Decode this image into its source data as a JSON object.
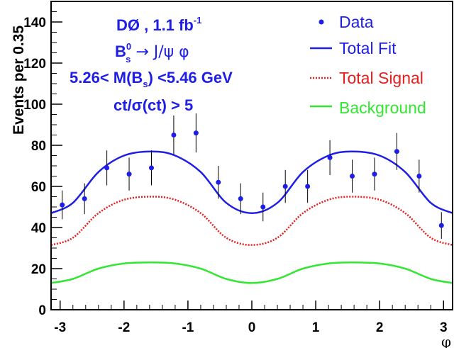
{
  "chart_data": {
    "type": "scatter",
    "xlabel": "φ",
    "ylabel": "Events per 0.35",
    "xlim": [
      -3.141593,
      3.141593
    ],
    "ylim": [
      0,
      150
    ],
    "x_ticks": [
      -3,
      -2,
      -1,
      0,
      1,
      2,
      3
    ],
    "x_tick_labels": [
      "-3",
      "-2",
      "-1",
      "0",
      "1",
      "2",
      "3"
    ],
    "y_ticks": [
      0,
      20,
      40,
      60,
      80,
      100,
      120,
      140
    ],
    "y_tick_labels": [
      "0",
      "20",
      "40",
      "60",
      "80",
      "100",
      "120",
      "140"
    ],
    "annotations": {
      "line1": "DØ , 1.1 fb",
      "line1_sup": "-1",
      "line2_b": "B",
      "line2_sub": "s",
      "line2_sup": "0",
      "line2_rest": " → J/ψ φ",
      "line3_a": "5.26< M(B",
      "line3_sub": "s",
      "line3_b": ") <5.46 GeV",
      "line4": "ct/σ(ct) > 5"
    },
    "legend": {
      "position": "top-right",
      "entries": [
        {
          "label": "Data",
          "kind": "marker",
          "color": "#1e1ee6"
        },
        {
          "label": "Total Fit",
          "kind": "solid",
          "color": "#1e1ee6"
        },
        {
          "label": "Total Signal",
          "kind": "dotted",
          "color": "#e61e1e"
        },
        {
          "label": "Background",
          "kind": "solid",
          "color": "#32e632"
        }
      ]
    },
    "data_points": {
      "name": "Data",
      "x": [
        -2.967,
        -2.618,
        -2.269,
        -1.92,
        -1.571,
        -1.222,
        -0.873,
        -0.524,
        -0.175,
        0.175,
        0.524,
        0.873,
        1.222,
        1.571,
        1.92,
        2.269,
        2.618,
        2.967
      ],
      "y": [
        51,
        54,
        69,
        66,
        69,
        85,
        86,
        62,
        54,
        50,
        60,
        60,
        74,
        65,
        66,
        77,
        65,
        41
      ],
      "yerr": [
        7,
        7.5,
        8.5,
        8,
        8.5,
        9.5,
        9.5,
        8,
        7.5,
        7,
        8,
        8,
        8.5,
        8,
        8,
        9,
        8,
        6.5
      ]
    },
    "curves": [
      {
        "name": "Total Fit",
        "color": "#1e1ee6",
        "style": "solid",
        "x": [
          -3.14,
          -2.8,
          -2.4,
          -2.0,
          -1.57,
          -1.2,
          -0.8,
          -0.4,
          0.0,
          0.4,
          0.8,
          1.2,
          1.57,
          2.0,
          2.4,
          2.8,
          3.14
        ],
        "y": [
          47,
          52,
          67,
          75,
          77,
          75,
          67,
          52,
          47,
          52,
          67,
          75,
          77,
          75,
          67,
          52,
          47
        ]
      },
      {
        "name": "Total Signal",
        "color": "#e61e1e",
        "style": "dotted",
        "x": [
          -3.14,
          -2.8,
          -2.4,
          -2.0,
          -1.57,
          -1.2,
          -0.8,
          -0.4,
          0.0,
          0.4,
          0.8,
          1.2,
          1.57,
          2.0,
          2.4,
          2.8,
          3.14
        ],
        "y": [
          31.5,
          35,
          47,
          53.5,
          55,
          53.5,
          47,
          35,
          31.5,
          35,
          47,
          53.5,
          55,
          53.5,
          47,
          35,
          31.5
        ]
      },
      {
        "name": "Background",
        "color": "#32e632",
        "style": "solid",
        "x": [
          -3.14,
          -2.8,
          -2.4,
          -2.0,
          -1.57,
          -1.2,
          -0.8,
          -0.4,
          0.0,
          0.4,
          0.8,
          1.2,
          1.57,
          2.0,
          2.4,
          2.8,
          3.14
        ],
        "y": [
          13,
          15,
          20,
          22.5,
          23,
          22.5,
          20,
          15,
          13,
          15,
          20,
          22.5,
          23,
          22.5,
          20,
          15,
          13
        ]
      }
    ]
  }
}
